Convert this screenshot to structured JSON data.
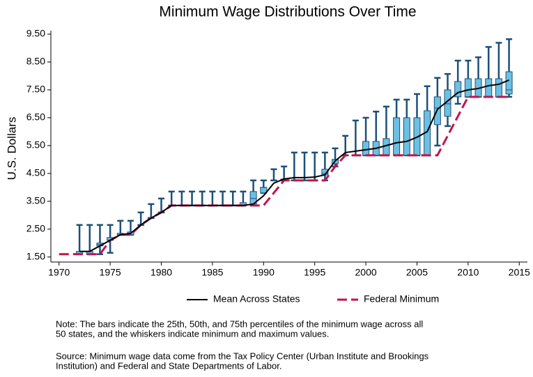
{
  "chart_data": {
    "type": "box",
    "title": "Minimum Wage Distributions Over Time",
    "ylabel": "U.S. Dollars",
    "xlim": [
      1969.2,
      2015.8
    ],
    "ylim": [
      1.32,
      9.5
    ],
    "xticks": [
      1970,
      1975,
      1980,
      1985,
      1990,
      1995,
      2000,
      2005,
      2010,
      2015
    ],
    "yticks": [
      {
        "value": 1.5,
        "label": "1.50"
      },
      {
        "value": 2.5,
        "label": "2.50"
      },
      {
        "value": 3.5,
        "label": "3.50"
      },
      {
        "value": 4.5,
        "label": "4.50"
      },
      {
        "value": 5.5,
        "label": "5.50"
      },
      {
        "value": 6.5,
        "label": "6.50"
      },
      {
        "value": 7.5,
        "label": "7.50"
      },
      {
        "value": 8.5,
        "label": "8.50"
      },
      {
        "value": 9.5,
        "label": "9.50"
      }
    ],
    "boxes": {
      "color": "#6cc0e2",
      "whisker_color": "#1d4f78",
      "x": [
        1972,
        1973,
        1974,
        1975,
        1976,
        1977,
        1978,
        1979,
        1980,
        1981,
        1982,
        1983,
        1984,
        1985,
        1986,
        1987,
        1988,
        1989,
        1990,
        1991,
        1992,
        1993,
        1994,
        1995,
        1996,
        1997,
        1998,
        1999,
        2000,
        2001,
        2002,
        2003,
        2004,
        2005,
        2006,
        2007,
        2008,
        2009,
        2010,
        2011,
        2012,
        2013,
        2014
      ],
      "min": [
        1.6,
        1.6,
        1.6,
        1.65,
        2.3,
        2.3,
        2.65,
        2.9,
        3.1,
        3.35,
        3.35,
        3.35,
        3.35,
        3.35,
        3.35,
        3.35,
        3.35,
        3.35,
        3.8,
        4.25,
        4.25,
        4.25,
        4.25,
        4.25,
        4.25,
        4.75,
        5.15,
        5.15,
        5.15,
        5.15,
        5.15,
        5.15,
        5.15,
        5.15,
        5.15,
        5.5,
        6.2,
        7.0,
        7.25,
        7.25,
        7.25,
        7.25,
        7.25
      ],
      "q1": [
        1.6,
        1.6,
        1.9,
        2.1,
        2.3,
        2.3,
        2.65,
        2.9,
        3.1,
        3.35,
        3.35,
        3.35,
        3.35,
        3.35,
        3.35,
        3.35,
        3.35,
        3.4,
        3.8,
        4.25,
        4.25,
        4.25,
        4.25,
        4.25,
        4.45,
        4.85,
        5.15,
        5.15,
        5.15,
        5.15,
        5.15,
        5.15,
        5.15,
        5.15,
        5.15,
        6.25,
        6.55,
        7.25,
        7.25,
        7.25,
        7.25,
        7.25,
        7.35
      ],
      "median": [
        1.6,
        1.6,
        1.95,
        2.1,
        2.3,
        2.3,
        2.65,
        2.9,
        3.1,
        3.35,
        3.35,
        3.35,
        3.35,
        3.35,
        3.35,
        3.35,
        3.35,
        3.6,
        4.0,
        4.25,
        4.25,
        4.25,
        4.25,
        4.25,
        4.5,
        5.0,
        5.15,
        5.15,
        5.15,
        5.15,
        5.15,
        5.15,
        5.15,
        5.15,
        5.15,
        6.85,
        7.0,
        7.25,
        7.25,
        7.25,
        7.25,
        7.25,
        7.5
      ],
      "q3": [
        1.7,
        1.7,
        2.0,
        2.2,
        2.35,
        2.4,
        2.65,
        2.9,
        3.1,
        3.35,
        3.35,
        3.35,
        3.35,
        3.35,
        3.35,
        3.35,
        3.45,
        3.85,
        4.0,
        4.25,
        4.3,
        4.25,
        4.25,
        4.25,
        4.65,
        5.0,
        5.15,
        5.15,
        5.65,
        5.65,
        5.75,
        6.5,
        6.5,
        6.5,
        6.75,
        7.25,
        7.5,
        7.8,
        7.9,
        7.9,
        7.9,
        7.9,
        8.15
      ],
      "max": [
        2.65,
        2.65,
        2.65,
        2.65,
        2.8,
        2.8,
        3.1,
        3.4,
        3.6,
        3.85,
        3.85,
        3.85,
        3.85,
        3.85,
        3.85,
        3.85,
        3.85,
        4.25,
        4.25,
        4.65,
        4.75,
        5.25,
        5.25,
        5.25,
        5.25,
        5.4,
        5.85,
        6.4,
        6.5,
        6.72,
        6.9,
        7.15,
        7.15,
        7.35,
        7.63,
        7.93,
        8.07,
        8.55,
        8.55,
        8.67,
        9.04,
        9.19,
        9.32
      ]
    },
    "series": [
      {
        "name": "Mean Across States",
        "color": "#000000",
        "dashed": false,
        "x": [
          1972,
          1973,
          1974,
          1975,
          1976,
          1977,
          1978,
          1979,
          1980,
          1981,
          1982,
          1983,
          1984,
          1985,
          1986,
          1987,
          1988,
          1989,
          1990,
          1991,
          1992,
          1993,
          1994,
          1995,
          1996,
          1997,
          1998,
          1999,
          2000,
          2001,
          2002,
          2003,
          2004,
          2005,
          2006,
          2007,
          2008,
          2009,
          2010,
          2011,
          2012,
          2013,
          2014
        ],
        "values": [
          1.7,
          1.7,
          1.9,
          2.1,
          2.3,
          2.35,
          2.65,
          2.9,
          3.1,
          3.35,
          3.35,
          3.35,
          3.35,
          3.35,
          3.35,
          3.35,
          3.35,
          3.4,
          3.7,
          4.15,
          4.3,
          4.35,
          4.35,
          4.37,
          4.45,
          4.95,
          5.25,
          5.3,
          5.35,
          5.4,
          5.5,
          5.6,
          5.65,
          5.8,
          6.0,
          6.8,
          7.1,
          7.4,
          7.5,
          7.55,
          7.65,
          7.7,
          7.85
        ]
      },
      {
        "name": "Federal Minimum",
        "color": "#c2134a",
        "dashed": true,
        "x": [
          1970,
          1971,
          1972,
          1973,
          1974,
          1975,
          1976,
          1977,
          1978,
          1979,
          1980,
          1981,
          1982,
          1983,
          1984,
          1985,
          1986,
          1987,
          1988,
          1989,
          1990,
          1991,
          1992,
          1993,
          1994,
          1995,
          1996,
          1997,
          1998,
          1999,
          2000,
          2001,
          2002,
          2003,
          2004,
          2005,
          2006,
          2007,
          2008,
          2009,
          2010,
          2011,
          2012,
          2013,
          2014
        ],
        "values": [
          1.6,
          1.6,
          1.6,
          1.6,
          1.6,
          2.1,
          2.3,
          2.3,
          2.65,
          2.9,
          3.1,
          3.35,
          3.35,
          3.35,
          3.35,
          3.35,
          3.35,
          3.35,
          3.35,
          3.35,
          3.35,
          3.8,
          4.25,
          4.25,
          4.25,
          4.25,
          4.25,
          4.75,
          5.15,
          5.15,
          5.15,
          5.15,
          5.15,
          5.15,
          5.15,
          5.15,
          5.15,
          5.15,
          5.85,
          6.55,
          7.25,
          7.25,
          7.25,
          7.25,
          7.25
        ]
      }
    ],
    "notes": [
      "Note: The bars indicate the 25th, 50th, and 75th percentiles of the minimum wage across all",
      "50 states, and the whiskers indicate minimum and maximum values.",
      "Source: Minimum wage data come from the Tax Policy Center (Urban Institute and Brookings",
      "Institution) and Federal and State Departments of Labor."
    ]
  }
}
